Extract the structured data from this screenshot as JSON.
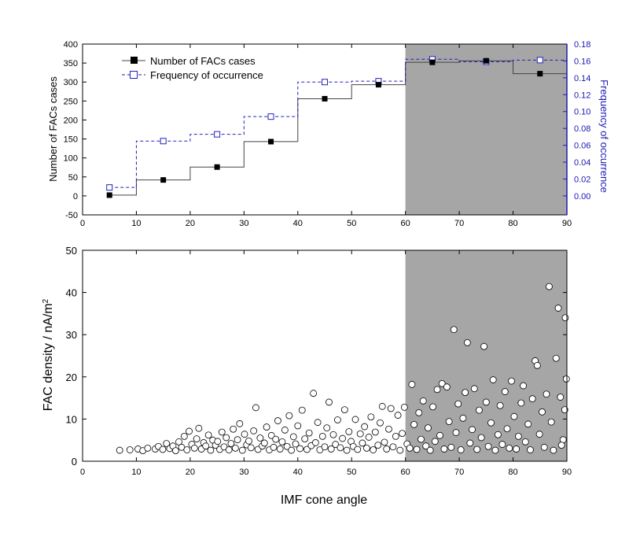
{
  "chart_data": [
    {
      "type": "line",
      "panel": "top",
      "xlabel": "",
      "ylabel": "Number of FACs cases",
      "y2label": "Frequency of occurrence",
      "xlim": [
        0,
        90
      ],
      "ylim": [
        -50,
        400
      ],
      "y2lim": [
        -0.0225,
        0.18
      ],
      "xticks": [
        0,
        10,
        20,
        30,
        40,
        50,
        60,
        70,
        80,
        90
      ],
      "yticks": [
        -50,
        0,
        50,
        100,
        150,
        200,
        250,
        300,
        350,
        400
      ],
      "y2ticks": [
        0.0,
        0.02,
        0.04,
        0.06,
        0.08,
        0.1,
        0.12,
        0.14,
        0.16,
        0.18
      ],
      "shaded_region": [
        60,
        90
      ],
      "legend_position": "top-left",
      "colors": {
        "cases": "#000000",
        "frequency": "#2222bb",
        "shade": "#a6a6a6",
        "right_axis": "#1a1ab4"
      },
      "bin_edges": [
        5,
        10,
        20,
        30,
        40,
        50,
        60,
        70,
        80,
        90
      ],
      "series": [
        {
          "name": "Number of FACs cases",
          "axis": "left",
          "style": "solid-step-filled-square",
          "x": [
            5,
            15,
            25,
            35,
            45,
            55,
            65,
            75,
            85
          ],
          "values": [
            2,
            42,
            76,
            143,
            256,
            293,
            352,
            356,
            322
          ]
        },
        {
          "name": "Frequency of occurrence",
          "axis": "right",
          "style": "dashed-step-open-square",
          "x": [
            5,
            15,
            25,
            35,
            45,
            55,
            65,
            75,
            85
          ],
          "values": [
            0.01,
            0.065,
            0.073,
            0.094,
            0.135,
            0.136,
            0.162,
            0.159,
            0.161
          ]
        }
      ]
    },
    {
      "type": "scatter",
      "panel": "bottom",
      "xlabel": "IMF cone angle",
      "ylabel": "FAC density / nA/m",
      "ylabel_superscript": "2",
      "xlim": [
        0,
        90
      ],
      "ylim": [
        0,
        50
      ],
      "xticks": [
        0,
        10,
        20,
        30,
        40,
        50,
        60,
        70,
        80,
        90
      ],
      "yticks": [
        0,
        10,
        20,
        30,
        40,
        50
      ],
      "shaded_region": [
        60,
        90
      ],
      "marker": "open-circle",
      "series": [
        {
          "name": "",
          "points": [
            [
              6.9,
              2.6
            ],
            [
              8.8,
              2.7
            ],
            [
              10.3,
              2.9
            ],
            [
              11.2,
              2.5
            ],
            [
              12.1,
              3.1
            ],
            [
              13.5,
              2.9
            ],
            [
              14.1,
              3.5
            ],
            [
              14.9,
              2.8
            ],
            [
              15.6,
              4.2
            ],
            [
              16.2,
              3.0
            ],
            [
              16.8,
              3.6
            ],
            [
              17.3,
              2.5
            ],
            [
              17.9,
              4.6
            ],
            [
              18.4,
              3.3
            ],
            [
              18.9,
              5.9
            ],
            [
              19.4,
              2.7
            ],
            [
              19.8,
              7.1
            ],
            [
              20.3,
              4.0
            ],
            [
              20.8,
              3.1
            ],
            [
              21.2,
              5.3
            ],
            [
              21.6,
              7.8
            ],
            [
              22.1,
              2.9
            ],
            [
              22.5,
              4.4
            ],
            [
              22.9,
              3.6
            ],
            [
              23.4,
              6.2
            ],
            [
              23.8,
              2.6
            ],
            [
              24.2,
              5.0
            ],
            [
              24.7,
              3.8
            ],
            [
              25.1,
              4.7
            ],
            [
              25.5,
              2.8
            ],
            [
              25.9,
              6.9
            ],
            [
              26.3,
              3.4
            ],
            [
              26.7,
              5.6
            ],
            [
              27.2,
              2.7
            ],
            [
              27.6,
              4.2
            ],
            [
              28.0,
              7.6
            ],
            [
              28.4,
              3.1
            ],
            [
              28.8,
              5.1
            ],
            [
              29.2,
              8.9
            ],
            [
              29.7,
              2.6
            ],
            [
              30.1,
              6.4
            ],
            [
              30.5,
              3.9
            ],
            [
              30.9,
              4.8
            ],
            [
              31.3,
              3.2
            ],
            [
              31.8,
              7.2
            ],
            [
              32.2,
              12.7
            ],
            [
              32.6,
              2.8
            ],
            [
              33.0,
              5.5
            ],
            [
              33.4,
              3.6
            ],
            [
              33.8,
              4.3
            ],
            [
              34.2,
              8.1
            ],
            [
              34.7,
              2.7
            ],
            [
              35.1,
              6.1
            ],
            [
              35.5,
              3.3
            ],
            [
              35.9,
              5.2
            ],
            [
              36.3,
              9.6
            ],
            [
              36.7,
              2.9
            ],
            [
              37.1,
              4.6
            ],
            [
              37.6,
              7.4
            ],
            [
              38.0,
              3.5
            ],
            [
              38.4,
              10.8
            ],
            [
              38.8,
              2.6
            ],
            [
              39.2,
              5.8
            ],
            [
              39.6,
              4.1
            ],
            [
              40.0,
              8.4
            ],
            [
              40.4,
              3.0
            ],
            [
              40.8,
              12.1
            ],
            [
              41.3,
              5.3
            ],
            [
              41.7,
              2.8
            ],
            [
              42.1,
              6.7
            ],
            [
              42.5,
              3.7
            ],
            [
              42.9,
              16.1
            ],
            [
              43.3,
              4.4
            ],
            [
              43.7,
              9.2
            ],
            [
              44.1,
              2.7
            ],
            [
              44.6,
              5.9
            ],
            [
              45.0,
              3.4
            ],
            [
              45.4,
              7.9
            ],
            [
              45.8,
              14.0
            ],
            [
              46.2,
              2.9
            ],
            [
              46.6,
              6.3
            ],
            [
              47.0,
              4.0
            ],
            [
              47.4,
              9.8
            ],
            [
              47.9,
              3.2
            ],
            [
              48.3,
              5.4
            ],
            [
              48.7,
              12.2
            ],
            [
              49.1,
              2.6
            ],
            [
              49.5,
              7.0
            ],
            [
              49.9,
              4.7
            ],
            [
              50.3,
              3.5
            ],
            [
              50.7,
              9.9
            ],
            [
              51.1,
              2.8
            ],
            [
              51.6,
              6.5
            ],
            [
              52.0,
              4.3
            ],
            [
              52.4,
              8.2
            ],
            [
              52.8,
              3.1
            ],
            [
              53.2,
              5.7
            ],
            [
              53.6,
              10.5
            ],
            [
              54.0,
              2.7
            ],
            [
              54.4,
              6.9
            ],
            [
              54.9,
              3.8
            ],
            [
              55.3,
              9.1
            ],
            [
              55.7,
              13.0
            ],
            [
              56.1,
              4.5
            ],
            [
              56.5,
              2.9
            ],
            [
              56.9,
              7.6
            ],
            [
              57.3,
              12.5
            ],
            [
              57.7,
              3.4
            ],
            [
              58.2,
              5.9
            ],
            [
              58.6,
              10.9
            ],
            [
              59.0,
              2.6
            ],
            [
              59.4,
              6.6
            ],
            [
              59.8,
              12.8
            ],
            [
              60.3,
              4.1
            ],
            [
              60.8,
              3.1
            ],
            [
              61.2,
              18.2
            ],
            [
              61.6,
              8.7
            ],
            [
              62.1,
              2.8
            ],
            [
              62.5,
              11.5
            ],
            [
              62.9,
              5.2
            ],
            [
              63.3,
              14.3
            ],
            [
              63.8,
              3.6
            ],
            [
              64.2,
              7.9
            ],
            [
              64.6,
              2.6
            ],
            [
              65.1,
              12.9
            ],
            [
              65.5,
              4.7
            ],
            [
              65.9,
              17.0
            ],
            [
              66.4,
              6.1
            ],
            [
              66.8,
              18.4
            ],
            [
              67.2,
              2.9
            ],
            [
              67.7,
              17.6
            ],
            [
              68.1,
              9.4
            ],
            [
              68.5,
              3.3
            ],
            [
              69.0,
              31.2
            ],
            [
              69.4,
              6.8
            ],
            [
              69.8,
              13.6
            ],
            [
              70.3,
              2.7
            ],
            [
              70.7,
              10.2
            ],
            [
              71.1,
              16.3
            ],
            [
              71.5,
              28.1
            ],
            [
              72.0,
              4.3
            ],
            [
              72.4,
              7.5
            ],
            [
              72.8,
              17.2
            ],
            [
              73.3,
              2.8
            ],
            [
              73.7,
              12.1
            ],
            [
              74.1,
              5.6
            ],
            [
              74.6,
              27.2
            ],
            [
              75.0,
              14.0
            ],
            [
              75.4,
              3.5
            ],
            [
              75.9,
              9.1
            ],
            [
              76.3,
              19.3
            ],
            [
              76.7,
              2.6
            ],
            [
              77.2,
              6.3
            ],
            [
              77.6,
              13.2
            ],
            [
              78.0,
              4.0
            ],
            [
              78.5,
              16.5
            ],
            [
              78.9,
              7.7
            ],
            [
              79.3,
              3.1
            ],
            [
              79.7,
              19.0
            ],
            [
              80.2,
              10.6
            ],
            [
              80.6,
              2.9
            ],
            [
              81.0,
              5.9
            ],
            [
              81.5,
              13.8
            ],
            [
              81.9,
              17.9
            ],
            [
              82.3,
              4.6
            ],
            [
              82.8,
              8.8
            ],
            [
              83.2,
              2.7
            ],
            [
              83.6,
              14.8
            ],
            [
              84.1,
              23.8
            ],
            [
              84.5,
              22.7
            ],
            [
              84.9,
              6.4
            ],
            [
              85.4,
              11.7
            ],
            [
              85.8,
              3.3
            ],
            [
              86.2,
              15.9
            ],
            [
              86.7,
              41.4
            ],
            [
              87.1,
              9.3
            ],
            [
              87.5,
              2.6
            ],
            [
              88.0,
              24.4
            ],
            [
              88.4,
              36.3
            ],
            [
              88.8,
              15.2
            ],
            [
              89.3,
              5.1
            ],
            [
              89.7,
              34.0
            ],
            [
              89.9,
              19.5
            ],
            [
              89.6,
              12.2
            ],
            [
              89.0,
              3.8
            ]
          ]
        }
      ]
    }
  ]
}
